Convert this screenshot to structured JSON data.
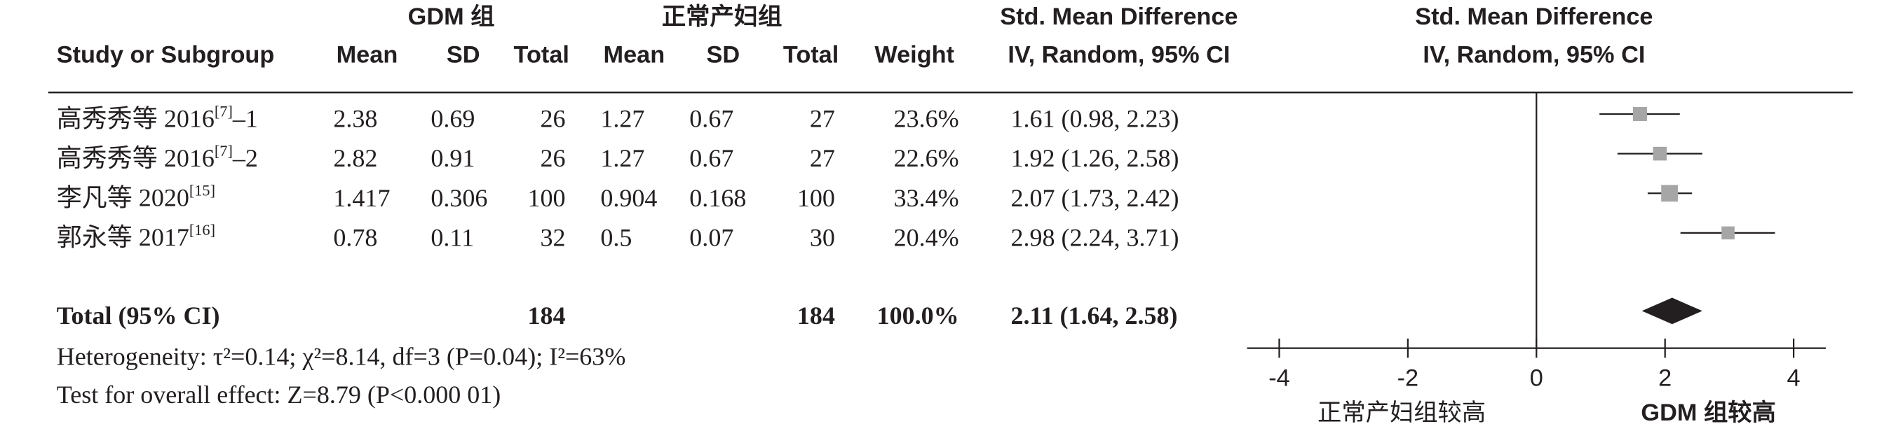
{
  "chart_data": {
    "type": "forest",
    "group_headers": [
      "GDM 组",
      "正常产妇组"
    ],
    "effect_header": "Std. Mean Difference",
    "method_header": "IV, Random, 95% CI",
    "columns": [
      "Study or Subgroup",
      "Mean",
      "SD",
      "Total",
      "Mean",
      "SD",
      "Total",
      "Weight"
    ],
    "studies": [
      {
        "name": "高秀秀等 2016",
        "ref": "[7]",
        "suffix": "–1",
        "mean1": 2.38,
        "sd1": 0.69,
        "n1": 26,
        "mean2": 1.27,
        "sd2": 0.67,
        "n2": 27,
        "weight": 23.6,
        "weight_label": "23.6%",
        "smd": 1.61,
        "lower": 0.98,
        "upper": 2.23,
        "ci_label": "1.61 (0.98, 2.23)"
      },
      {
        "name": "高秀秀等 2016",
        "ref": "[7]",
        "suffix": "–2",
        "mean1": 2.82,
        "sd1": 0.91,
        "n1": 26,
        "mean2": 1.27,
        "sd2": 0.67,
        "n2": 27,
        "weight": 22.6,
        "weight_label": "22.6%",
        "smd": 1.92,
        "lower": 1.26,
        "upper": 2.58,
        "ci_label": "1.92 (1.26, 2.58)"
      },
      {
        "name": "李凡等 2020",
        "ref": "[15]",
        "mean1": 1.417,
        "sd1": 0.306,
        "n1": 100,
        "mean2": 0.904,
        "sd2": 0.168,
        "n2": 100,
        "weight": 33.4,
        "weight_label": "33.4%",
        "smd": 2.07,
        "lower": 1.73,
        "upper": 2.42,
        "ci_label": "2.07 (1.73, 2.42)"
      },
      {
        "name": "郭永等 2017",
        "ref": "[16]",
        "mean1": 0.78,
        "sd1": 0.11,
        "n1": 32,
        "mean2": 0.5,
        "sd2": 0.07,
        "n2": 30,
        "weight": 20.4,
        "weight_label": "20.4%",
        "smd": 2.98,
        "lower": 2.24,
        "upper": 3.71,
        "ci_label": "2.98 (2.24, 3.71)"
      }
    ],
    "total": {
      "label": "Total (95% CI)",
      "n1": 184,
      "n2": 184,
      "weight": 100.0,
      "weight_label": "100.0%",
      "smd": 2.11,
      "lower": 1.64,
      "upper": 2.58,
      "ci_label": "2.11 (1.64, 2.58)"
    },
    "heterogeneity": "Heterogeneity: τ²=0.14; χ²=8.14, df=3 (P=0.04); I²=63%",
    "overall_effect": "Test for overall effect: Z=8.79 (P<0.000 01)",
    "xlim": [
      -4.5,
      4.5
    ],
    "xticks": [
      -4,
      -2,
      0,
      2,
      4
    ],
    "favours_left": "正常产妇组较高",
    "favours_right": "GDM 组较高",
    "square_color": "#a6a6a6",
    "diamond_color": "#231f20"
  }
}
